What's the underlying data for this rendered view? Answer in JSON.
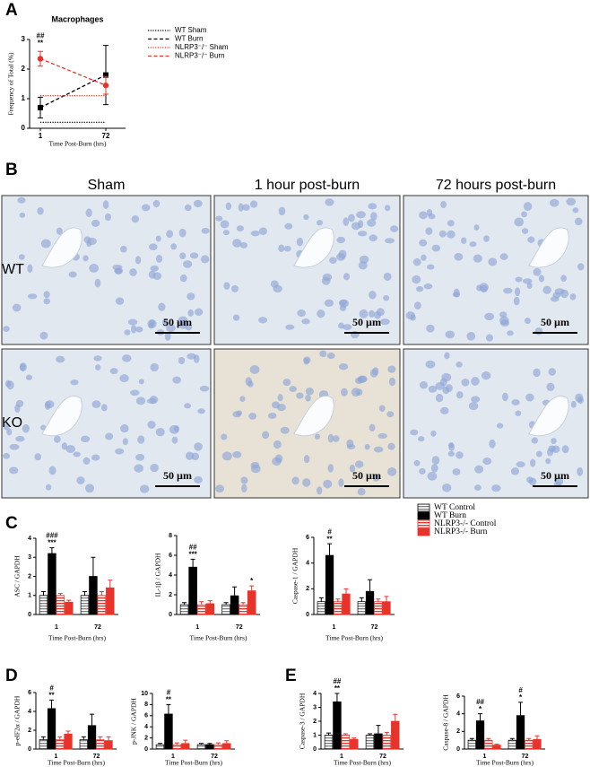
{
  "panel_labels": [
    "A",
    "B",
    "C",
    "D",
    "E"
  ],
  "micrographs": {
    "columns": [
      "Sham",
      "1 hour post-burn",
      "72 hours post-burn"
    ],
    "rows": [
      "WT",
      "KO"
    ],
    "scale_bar": "50 µm"
  },
  "bar_legend": [
    {
      "name": "WT Control",
      "color": "#808080",
      "hatch": true
    },
    {
      "name": "WT Burn",
      "color": "#000000",
      "hatch": false
    },
    {
      "name": "NLRP3-/- Control",
      "color": "#e8332a",
      "hatch": true
    },
    {
      "name": "NLRP3-/- Burn",
      "color": "#e8332a",
      "hatch": false
    }
  ],
  "chart_data": [
    {
      "type": "line",
      "title": "Macrophages",
      "ylabel": "Frequency of Total (%)",
      "xlabel": "Time Post-Burn (hrs)",
      "categories": [
        "1",
        "72"
      ],
      "ylim": [
        0,
        3
      ],
      "yticks": [
        0,
        1,
        2,
        3
      ],
      "series": [
        {
          "name": "WT Sham",
          "color": "#000000",
          "dash": "dotted",
          "values": [
            0.2,
            0.2
          ]
        },
        {
          "name": "WT Burn",
          "color": "#000000",
          "dash": "dashed",
          "marker": "square",
          "values": [
            0.7,
            1.8
          ],
          "errors": [
            0.35,
            1.0
          ]
        },
        {
          "name": "NLRP3⁻/⁻ Sham",
          "color": "#e8332a",
          "dash": "dotted",
          "values": [
            1.1,
            1.1
          ]
        },
        {
          "name": "NLRP3⁻/⁻ Burn",
          "color": "#e8332a",
          "dash": "dashed",
          "marker": "circle",
          "values": [
            2.35,
            1.45
          ],
          "errors": [
            0.25,
            0.3
          ],
          "annotations": [
            [
              "##",
              "**"
            ],
            null
          ]
        }
      ]
    },
    {
      "type": "bar",
      "ylabel": "ASC / GAPDH",
      "xlabel": "Time Post-Burn (hrs)",
      "categories": [
        "1",
        "72"
      ],
      "ylim": [
        0,
        4
      ],
      "yticks": [
        0,
        1,
        2,
        3,
        4
      ],
      "series": [
        {
          "values": [
            1.0,
            1.0
          ],
          "errors": [
            0.2,
            0.2
          ]
        },
        {
          "values": [
            3.2,
            2.0
          ],
          "errors": [
            0.3,
            1.0
          ],
          "annotations": [
            [
              "###",
              "***"
            ],
            null
          ]
        },
        {
          "values": [
            1.0,
            1.0
          ],
          "errors": [
            0.1,
            0.2
          ]
        },
        {
          "values": [
            0.65,
            1.4
          ],
          "errors": [
            0.1,
            0.4
          ]
        }
      ]
    },
    {
      "type": "bar",
      "ylabel": "IL-1β / GAPDH",
      "xlabel": "Time Post-Burn (hrs)",
      "categories": [
        "1",
        "72"
      ],
      "ylim": [
        0,
        8
      ],
      "yticks": [
        0,
        2,
        4,
        6,
        8
      ],
      "series": [
        {
          "values": [
            1.0,
            1.0
          ],
          "errors": [
            0.2,
            0.2
          ]
        },
        {
          "values": [
            4.8,
            1.9
          ],
          "errors": [
            0.8,
            0.9
          ],
          "annotations": [
            [
              "##",
              "***"
            ],
            null
          ]
        },
        {
          "values": [
            1.0,
            1.0
          ],
          "errors": [
            0.3,
            0.2
          ]
        },
        {
          "values": [
            1.1,
            2.4
          ],
          "errors": [
            0.3,
            0.5
          ],
          "annotations": [
            null,
            [
              "*"
            ]
          ]
        }
      ]
    },
    {
      "type": "bar",
      "ylabel": "Caspase-1 / GAPDH",
      "xlabel": "Time Post-Burn (hrs)",
      "categories": [
        "1",
        "72"
      ],
      "ylim": [
        0,
        6
      ],
      "yticks": [
        0,
        2,
        4,
        6
      ],
      "series": [
        {
          "values": [
            1.0,
            1.0
          ],
          "errors": [
            0.3,
            0.3
          ]
        },
        {
          "values": [
            4.6,
            1.8
          ],
          "errors": [
            0.9,
            0.9
          ],
          "annotations": [
            [
              "#",
              "**"
            ],
            null
          ]
        },
        {
          "values": [
            1.0,
            1.0
          ],
          "errors": [
            0.2,
            0.2
          ]
        },
        {
          "values": [
            1.6,
            1.0
          ],
          "errors": [
            0.4,
            0.4
          ]
        }
      ]
    },
    {
      "type": "bar",
      "ylabel": "p-eIF2α / GAPDH",
      "xlabel": "Time Post-Burn (hrs)",
      "categories": [
        "1",
        "72"
      ],
      "ylim": [
        0,
        6
      ],
      "yticks": [
        0,
        2,
        4,
        6
      ],
      "series": [
        {
          "values": [
            1.0,
            1.0
          ],
          "errors": [
            0.3,
            0.3
          ]
        },
        {
          "values": [
            4.3,
            2.5
          ],
          "errors": [
            0.9,
            1.2
          ],
          "annotations": [
            [
              "#",
              "**"
            ],
            null
          ]
        },
        {
          "values": [
            1.0,
            1.0
          ],
          "errors": [
            0.3,
            0.3
          ]
        },
        {
          "values": [
            1.6,
            0.9
          ],
          "errors": [
            0.3,
            0.4
          ]
        }
      ]
    },
    {
      "type": "bar",
      "ylabel": "p-JNK / GAPDH",
      "xlabel": "Time Post-Burn (hrs)",
      "categories": [
        "1",
        "72"
      ],
      "ylim": [
        0,
        10
      ],
      "yticks": [
        0,
        2,
        4,
        6,
        8,
        10
      ],
      "series": [
        {
          "values": [
            0.8,
            0.8
          ],
          "errors": [
            0.2,
            0.2
          ]
        },
        {
          "values": [
            6.3,
            0.8
          ],
          "errors": [
            1.7,
            0.2
          ],
          "annotations": [
            [
              "#",
              "**"
            ],
            null
          ]
        },
        {
          "values": [
            0.8,
            0.8
          ],
          "errors": [
            0.3,
            0.3
          ]
        },
        {
          "values": [
            1.0,
            1.0
          ],
          "errors": [
            0.6,
            0.5
          ]
        }
      ]
    },
    {
      "type": "bar",
      "ylabel": "Caspase-3 / GAPDH",
      "xlabel": "Time Post-Burn (hrs)",
      "categories": [
        "1",
        "72"
      ],
      "ylim": [
        0,
        4
      ],
      "yticks": [
        0,
        1,
        2,
        3,
        4
      ],
      "series": [
        {
          "values": [
            1.0,
            1.0
          ],
          "errors": [
            0.15,
            0.1
          ]
        },
        {
          "values": [
            3.4,
            1.1
          ],
          "errors": [
            0.6,
            0.6
          ],
          "annotations": [
            [
              "##",
              "**"
            ],
            null
          ]
        },
        {
          "values": [
            1.0,
            1.0
          ],
          "errors": [
            0.1,
            0.2
          ]
        },
        {
          "values": [
            0.7,
            2.0
          ],
          "errors": [
            0.1,
            0.5
          ]
        }
      ]
    },
    {
      "type": "bar",
      "ylabel": "Caspase-8 / GAPDH",
      "xlabel": "Time Post-Burn (hrs)",
      "categories": [
        "1",
        "72"
      ],
      "ylim": [
        0,
        6
      ],
      "yticks": [
        0,
        2,
        4,
        6
      ],
      "series": [
        {
          "values": [
            1.0,
            1.0
          ],
          "errors": [
            0.2,
            0.2
          ]
        },
        {
          "values": [
            3.2,
            3.8
          ],
          "errors": [
            0.8,
            1.5
          ],
          "annotations": [
            [
              "##",
              "*"
            ],
            [
              "#",
              "*"
            ]
          ]
        },
        {
          "values": [
            1.0,
            1.0
          ],
          "errors": [
            0.2,
            0.2
          ]
        },
        {
          "values": [
            0.45,
            1.1
          ],
          "errors": [
            0.1,
            0.4
          ]
        }
      ]
    }
  ]
}
